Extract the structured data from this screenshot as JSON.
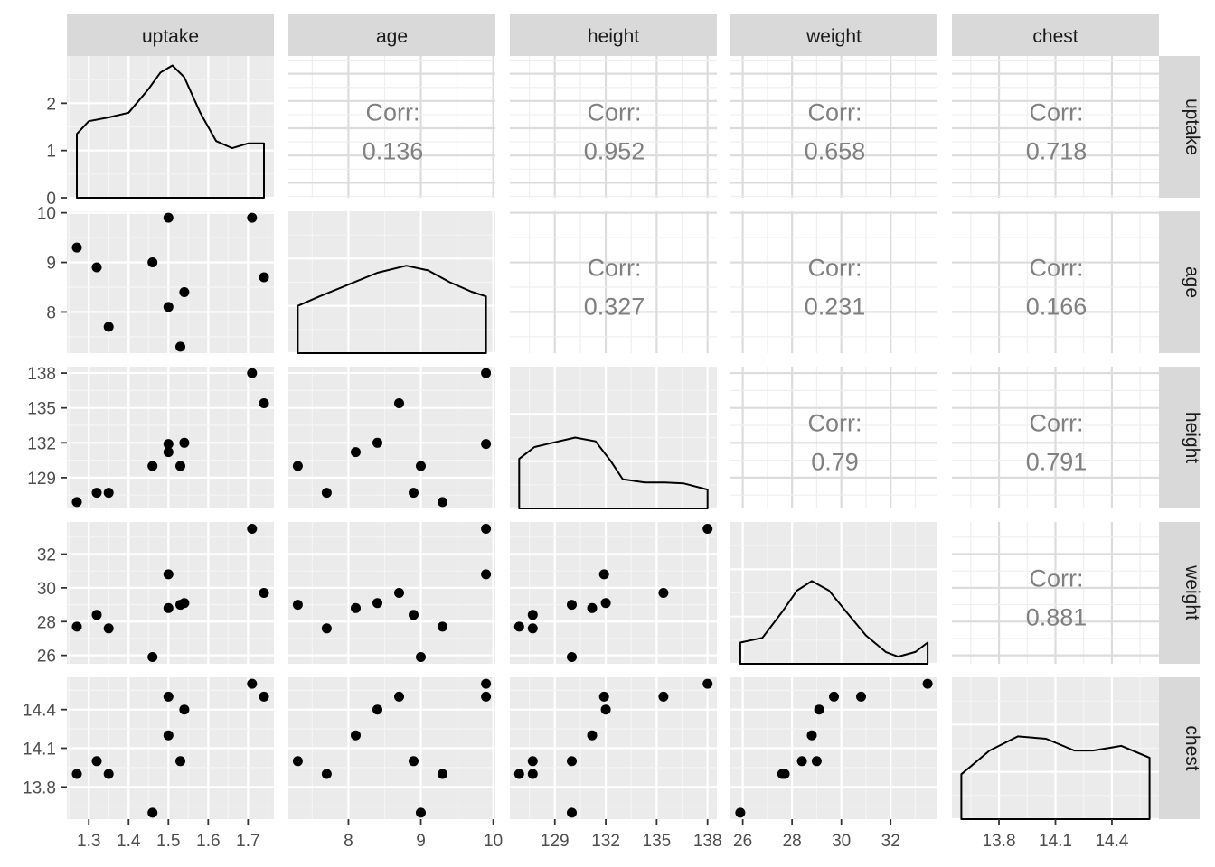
{
  "chart_data": {
    "type": "scatter-matrix",
    "variables": [
      "uptake",
      "age",
      "height",
      "weight",
      "chest"
    ],
    "corr_label": "Corr:",
    "correlations": [
      {
        "row": "uptake",
        "col": "age",
        "value": "0.136"
      },
      {
        "row": "uptake",
        "col": "height",
        "value": "0.952"
      },
      {
        "row": "uptake",
        "col": "weight",
        "value": "0.658"
      },
      {
        "row": "uptake",
        "col": "chest",
        "value": "0.718"
      },
      {
        "row": "age",
        "col": "height",
        "value": "0.327"
      },
      {
        "row": "age",
        "col": "weight",
        "value": "0.231"
      },
      {
        "row": "age",
        "col": "chest",
        "value": "0.166"
      },
      {
        "row": "height",
        "col": "weight",
        "value": "0.79"
      },
      {
        "row": "height",
        "col": "chest",
        "value": "0.791"
      },
      {
        "row": "weight",
        "col": "chest",
        "value": "0.881"
      }
    ],
    "observations": {
      "uptake": [
        1.27,
        1.32,
        1.35,
        1.46,
        1.5,
        1.5,
        1.53,
        1.54,
        1.71,
        1.74
      ],
      "age": [
        9.3,
        8.9,
        7.7,
        9.0,
        9.9,
        8.1,
        7.3,
        8.4,
        9.9,
        8.7
      ],
      "height": [
        126.9,
        127.7,
        127.7,
        130.0,
        131.9,
        131.2,
        130.0,
        132.0,
        138.0,
        135.4
      ],
      "weight": [
        27.7,
        28.4,
        27.6,
        25.9,
        30.8,
        28.8,
        29.0,
        29.1,
        33.5,
        29.7
      ],
      "chest": [
        13.9,
        14.0,
        13.9,
        13.6,
        14.5,
        14.2,
        14.0,
        14.4,
        14.6,
        14.5
      ]
    },
    "axes": {
      "uptake": {
        "range": [
          1.245,
          1.765
        ],
        "ticks": [
          "1.3",
          "1.4",
          "1.5",
          "1.6",
          "1.7"
        ]
      },
      "age": {
        "range": [
          7.17,
          10.03
        ],
        "ticks": [
          "8",
          "9",
          "10"
        ]
      },
      "height": {
        "range": [
          126.35,
          138.55
        ],
        "ticks": [
          "129",
          "132",
          "135",
          "138"
        ]
      },
      "weight": {
        "range": [
          25.5,
          33.9
        ],
        "ticks": [
          "26",
          "28",
          "30",
          "32"
        ]
      },
      "chest": {
        "range": [
          13.55,
          14.65
        ],
        "ticks": [
          "13.8",
          "14.1",
          "14.4"
        ]
      }
    },
    "density_y_ticks": [
      "0",
      "1",
      "2"
    ],
    "density_y_max": 3.0,
    "densities": {
      "uptake": [
        [
          1.27,
          1.35
        ],
        [
          1.3,
          1.62
        ],
        [
          1.35,
          1.7
        ],
        [
          1.4,
          1.8
        ],
        [
          1.45,
          2.3
        ],
        [
          1.48,
          2.65
        ],
        [
          1.51,
          2.8
        ],
        [
          1.54,
          2.55
        ],
        [
          1.58,
          1.8
        ],
        [
          1.62,
          1.2
        ],
        [
          1.66,
          1.05
        ],
        [
          1.7,
          1.15
        ],
        [
          1.74,
          1.15
        ]
      ],
      "age": [
        [
          7.3,
          1.0
        ],
        [
          7.6,
          1.2
        ],
        [
          8.0,
          1.45
        ],
        [
          8.4,
          1.7
        ],
        [
          8.8,
          1.85
        ],
        [
          9.1,
          1.75
        ],
        [
          9.4,
          1.5
        ],
        [
          9.7,
          1.3
        ],
        [
          9.9,
          1.2
        ]
      ],
      "height": [
        [
          126.9,
          1.05
        ],
        [
          127.8,
          1.3
        ],
        [
          129.0,
          1.4
        ],
        [
          130.2,
          1.5
        ],
        [
          131.4,
          1.42
        ],
        [
          132.3,
          1.0
        ],
        [
          133.0,
          0.62
        ],
        [
          134.3,
          0.55
        ],
        [
          135.5,
          0.55
        ],
        [
          136.6,
          0.53
        ],
        [
          138.0,
          0.4
        ]
      ],
      "weight": [
        [
          25.9,
          0.45
        ],
        [
          26.8,
          0.55
        ],
        [
          27.6,
          1.1
        ],
        [
          28.2,
          1.55
        ],
        [
          28.8,
          1.75
        ],
        [
          29.5,
          1.55
        ],
        [
          30.2,
          1.1
        ],
        [
          31.0,
          0.6
        ],
        [
          31.8,
          0.25
        ],
        [
          32.3,
          0.15
        ],
        [
          33.0,
          0.25
        ],
        [
          33.5,
          0.45
        ]
      ],
      "chest": [
        [
          13.6,
          0.95
        ],
        [
          13.75,
          1.45
        ],
        [
          13.9,
          1.75
        ],
        [
          14.05,
          1.7
        ],
        [
          14.2,
          1.45
        ],
        [
          14.3,
          1.45
        ],
        [
          14.45,
          1.55
        ],
        [
          14.6,
          1.3
        ]
      ]
    }
  }
}
